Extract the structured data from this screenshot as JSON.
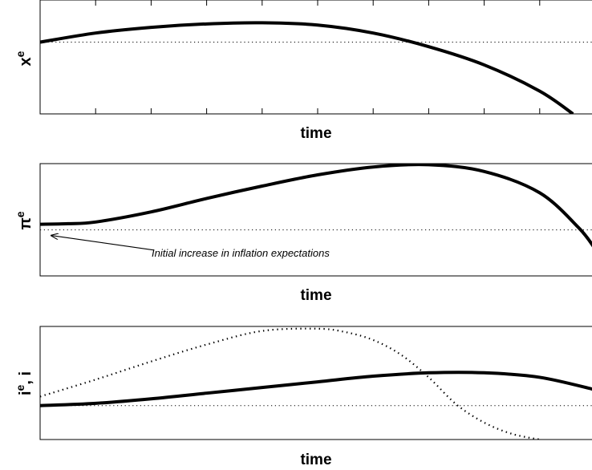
{
  "chart_data": [
    {
      "type": "line",
      "xlabel": "time",
      "ylabel": "x^e",
      "ylabel_base": "x",
      "ylabel_sup": "e",
      "xlim": [
        0,
        10
      ],
      "ylim": [
        0,
        10
      ],
      "x_ticks": 10,
      "baseline": 6.3,
      "series": [
        {
          "style": "solid",
          "x": [
            0,
            1,
            2,
            3,
            4,
            5,
            6,
            7,
            8,
            9,
            9.6
          ],
          "y": [
            6.3,
            7.1,
            7.6,
            7.9,
            8.0,
            7.8,
            7.1,
            5.9,
            4.3,
            2.0,
            0.0
          ]
        }
      ]
    },
    {
      "type": "line",
      "xlabel": "time",
      "ylabel": "π^e",
      "ylabel_base": "π",
      "ylabel_sup": "e",
      "xlim": [
        0,
        10
      ],
      "ylim": [
        0,
        10
      ],
      "baseline": 4.1,
      "series": [
        {
          "style": "solid",
          "x": [
            0,
            0.5,
            1,
            2,
            3,
            4,
            5,
            6,
            7,
            8,
            9,
            9.7,
            10
          ],
          "y": [
            4.6,
            4.65,
            4.8,
            5.7,
            6.9,
            8.0,
            9.0,
            9.7,
            9.9,
            9.3,
            7.4,
            4.3,
            2.4
          ]
        }
      ],
      "annotation": {
        "text": "Initial increase in inflation expectations",
        "arrow_from": [
          2.05,
          2.3
        ],
        "arrow_to": [
          0.2,
          3.6
        ]
      }
    },
    {
      "type": "line",
      "xlabel": "time",
      "ylabel": "i^e, i",
      "ylabel_base": "i",
      "ylabel_sup": "e",
      "ylabel_rest": ", i",
      "xlim": [
        0,
        10
      ],
      "ylim": [
        0,
        10
      ],
      "baseline": 3.0,
      "series": [
        {
          "style": "solid",
          "x": [
            0,
            1,
            2,
            3,
            4,
            5,
            6,
            7,
            8,
            9,
            10
          ],
          "y": [
            3.0,
            3.2,
            3.6,
            4.1,
            4.6,
            5.1,
            5.6,
            5.9,
            5.9,
            5.5,
            4.4
          ]
        },
        {
          "style": "dotted",
          "x": [
            0,
            1,
            2,
            3,
            4,
            5,
            5.5,
            6,
            6.5,
            7,
            7.5,
            8,
            8.5,
            9
          ],
          "y": [
            3.8,
            5.3,
            6.9,
            8.4,
            9.6,
            9.8,
            9.5,
            8.8,
            7.5,
            5.5,
            3.1,
            1.5,
            0.5,
            0.0
          ]
        }
      ]
    }
  ]
}
